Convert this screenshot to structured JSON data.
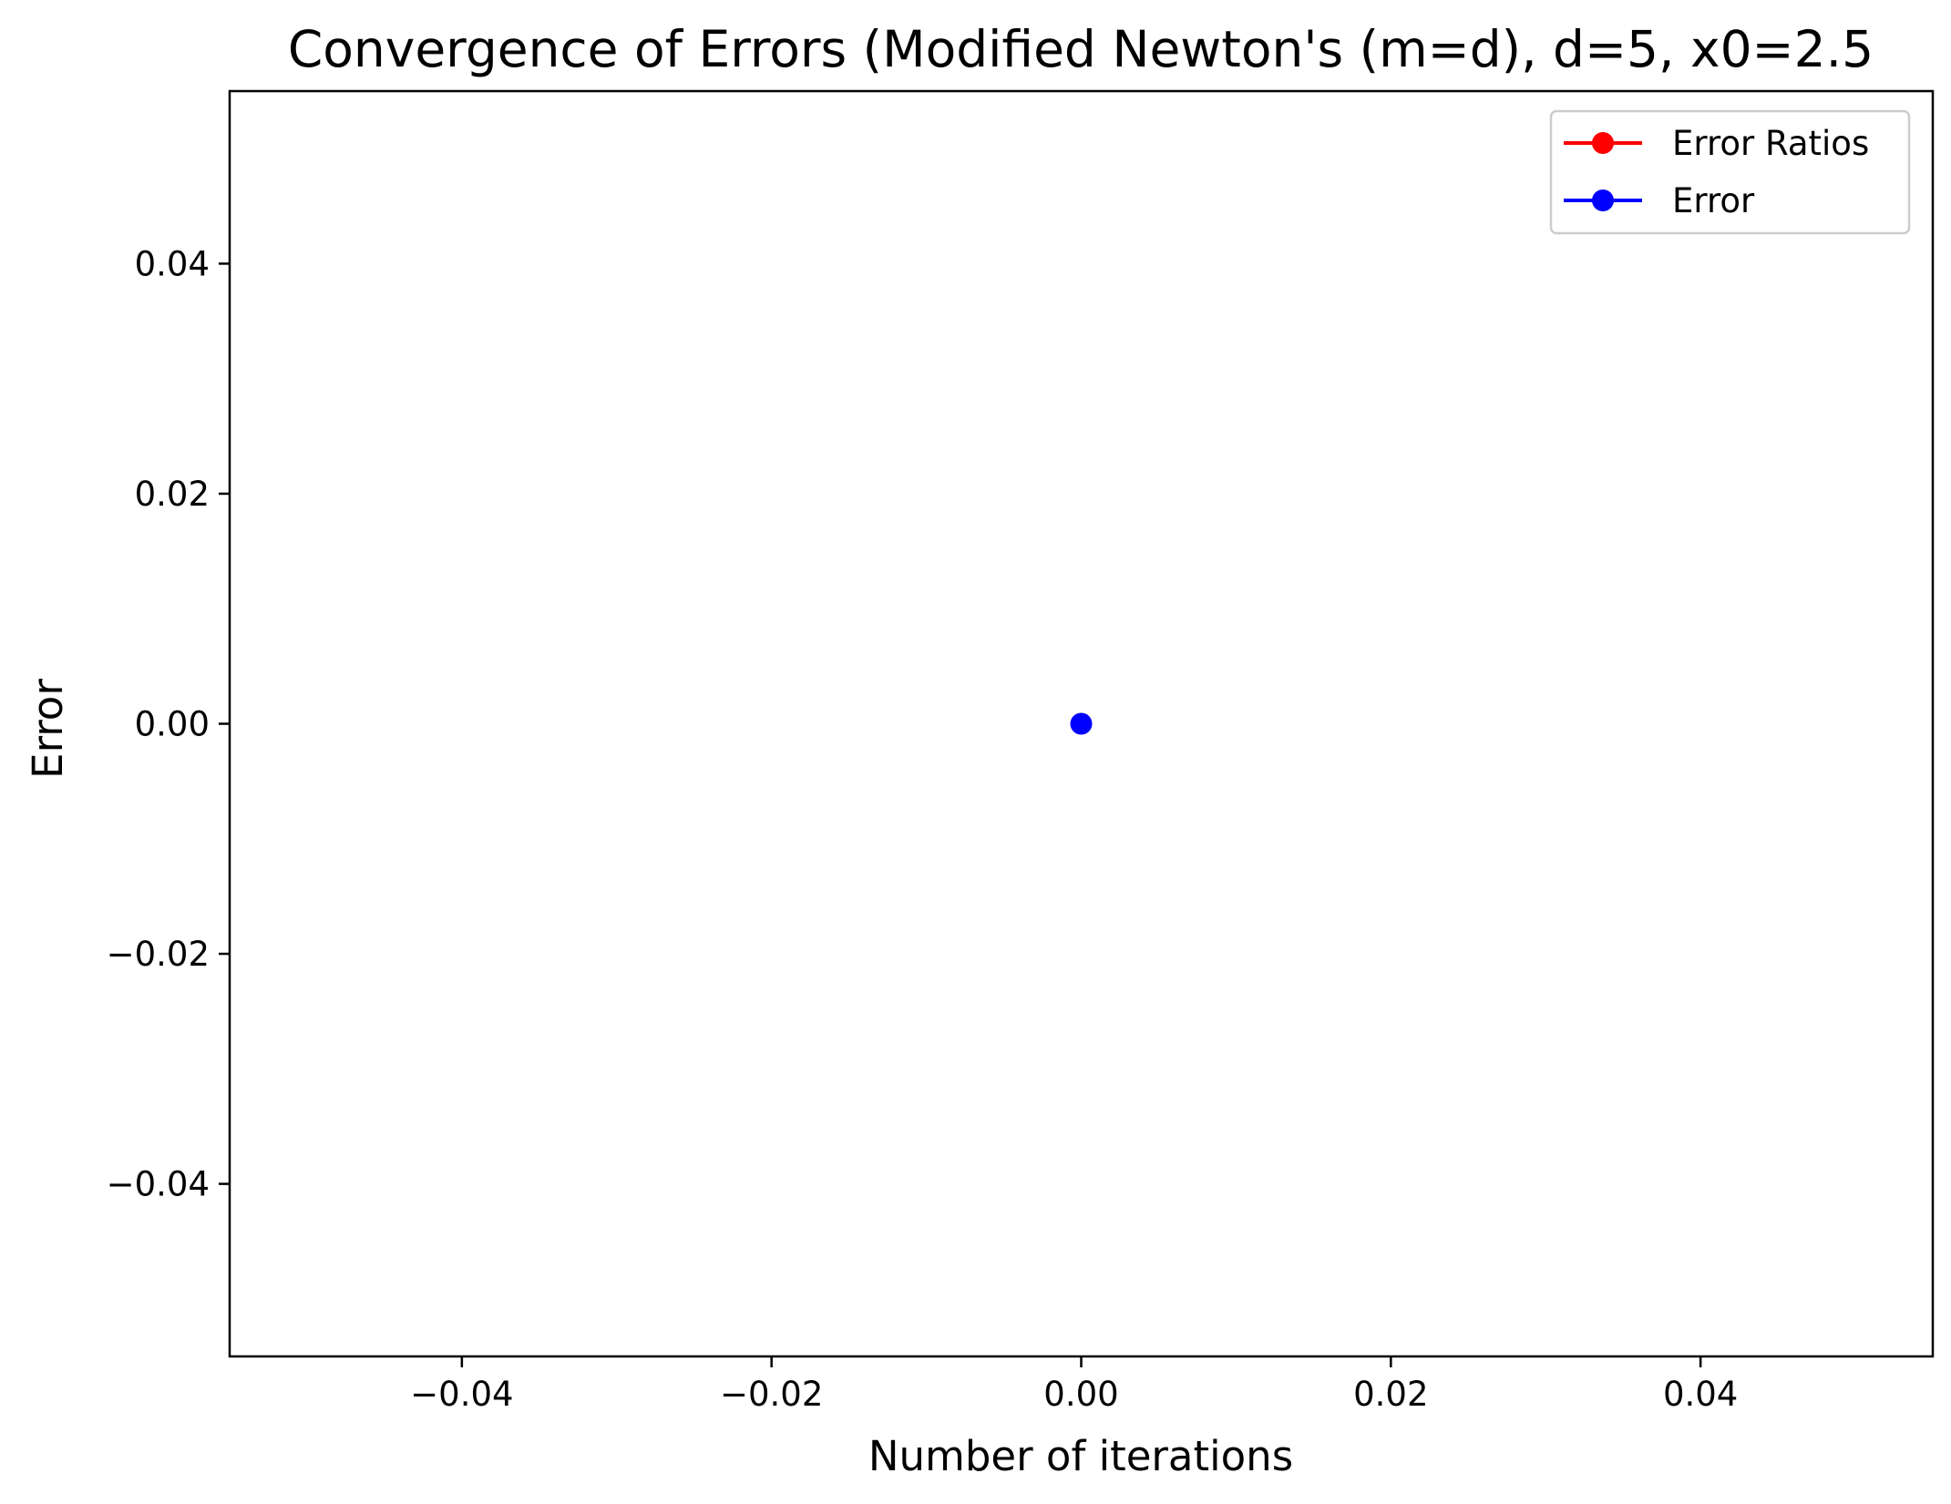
{
  "chart_data": {
    "type": "line",
    "title": "Convergence of Errors (Modified Newton's (m=d), d=5, x0=2.5",
    "xlabel": "Number of iterations",
    "ylabel": "Error",
    "xlim": [
      -0.055,
      0.055
    ],
    "ylim": [
      -0.055,
      0.055
    ],
    "xticks": [
      -0.04,
      -0.02,
      0.0,
      0.02,
      0.04
    ],
    "yticks": [
      -0.04,
      -0.02,
      0.0,
      0.02,
      0.04
    ],
    "xtick_labels": [
      "−0.04",
      "−0.02",
      "0.00",
      "0.02",
      "0.04"
    ],
    "ytick_labels": [
      "−0.04",
      "−0.02",
      "0.00",
      "0.02",
      "0.04"
    ],
    "grid": false,
    "legend_position": "top-right",
    "series": [
      {
        "name": "Error Ratios",
        "color": "#ff0000",
        "marker": "circle",
        "x": [],
        "y": []
      },
      {
        "name": "Error",
        "color": "#0000ff",
        "marker": "circle",
        "x": [
          0
        ],
        "y": [
          0
        ]
      }
    ]
  }
}
